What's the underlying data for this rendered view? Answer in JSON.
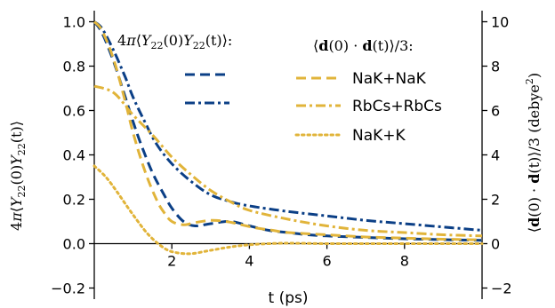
{
  "chart_data": {
    "type": "line",
    "xlabel": "t (ps)",
    "xlim": [
      0,
      10
    ],
    "x_ticks": [
      2,
      4,
      6,
      8
    ],
    "left_axis": {
      "label": "4π⟨Y22(0)Y22(t)⟩",
      "label_parts": {
        "pre": "4",
        "pi": "π",
        "open": "⟨",
        "y1": "Y",
        "s1": "22",
        "mid": "(0)",
        "y2": "Y",
        "s2": "22",
        "end": "(t)⟩"
      },
      "ylim": [
        -0.25,
        1.05
      ],
      "ticks": [
        -0.2,
        0.0,
        0.2,
        0.4,
        0.6,
        0.8,
        1.0
      ],
      "tick_labels": [
        "−0.2",
        "0.0",
        "0.2",
        "0.4",
        "0.6",
        "0.8",
        "1.0"
      ]
    },
    "right_axis": {
      "label": "⟨d(0) · d(t)⟩/3 (debye²)",
      "label_parts": {
        "open": "⟨",
        "d1": "d",
        "mid": "(0) · ",
        "d2": "d",
        "end": "(t)⟩/3 (debye",
        "sup": "2",
        "close": ")"
      },
      "ylim": [
        -2.5,
        10.5
      ],
      "ticks": [
        -2,
        0,
        2,
        4,
        6,
        8,
        10
      ],
      "tick_labels": [
        "−2",
        "0",
        "2",
        "4",
        "6",
        "8",
        "10"
      ]
    },
    "legend_left": {
      "title": "4π⟨Y22(0)Y22(t)⟩:",
      "title_parts": {
        "pre": "4",
        "pi": "π",
        "open": "⟨",
        "y1": "Y",
        "s1": "22",
        "mid": "(0)",
        "y2": "Y",
        "s2": "22",
        "end": "(t)⟩:"
      }
    },
    "legend_right": {
      "title": "⟨d(0) · d(t)⟩/3:",
      "title_parts": {
        "open": "⟨",
        "d1": "d",
        "mid": "(0) · ",
        "d2": "d",
        "end": "(t)⟩/3:"
      }
    },
    "series": [
      {
        "name": "NaK+NaK",
        "axis": "left",
        "color": "#0b3f86",
        "dash": "dashed",
        "x": [
          0,
          0.2,
          0.5,
          0.8,
          1.0,
          1.2,
          1.5,
          1.8,
          2.0,
          2.3,
          2.6,
          3.0,
          3.5,
          4.0,
          4.5,
          5.0,
          5.5,
          6.0,
          7.0,
          8.0,
          9.0,
          10.0
        ],
        "y": [
          1.0,
          0.95,
          0.82,
          0.66,
          0.55,
          0.45,
          0.32,
          0.22,
          0.16,
          0.1,
          0.08,
          0.09,
          0.1,
          0.08,
          0.06,
          0.05,
          0.04,
          0.035,
          0.028,
          0.022,
          0.018,
          0.015
        ]
      },
      {
        "name": "RbCs+RbCs",
        "axis": "left",
        "color": "#0b3f86",
        "dash": "dashdot",
        "x": [
          0,
          0.2,
          0.5,
          0.8,
          1.0,
          1.3,
          1.6,
          2.0,
          2.5,
          3.0,
          3.5,
          4.0,
          5.0,
          6.0,
          7.0,
          8.0,
          9.0,
          10.0
        ],
        "y": [
          1.0,
          0.97,
          0.87,
          0.75,
          0.66,
          0.55,
          0.45,
          0.36,
          0.28,
          0.22,
          0.19,
          0.17,
          0.145,
          0.125,
          0.105,
          0.09,
          0.075,
          0.06
        ]
      },
      {
        "name": "NaK+NaK",
        "axis": "right",
        "color": "#e1b43a",
        "dash": "dashed",
        "x": [
          0,
          0.2,
          0.5,
          0.8,
          1.0,
          1.3,
          1.6,
          1.8,
          2.0,
          2.3,
          2.6,
          3.0,
          3.4,
          3.8,
          4.2,
          4.6,
          5.0,
          6.0,
          7.0,
          8.0,
          9.0,
          10.0
        ],
        "y": [
          10.0,
          9.6,
          8.3,
          6.4,
          5.0,
          3.3,
          2.0,
          1.4,
          1.0,
          0.85,
          0.95,
          1.05,
          1.0,
          0.85,
          0.7,
          0.6,
          0.5,
          0.4,
          0.3,
          0.25,
          0.2,
          0.17
        ]
      },
      {
        "name": "RbCs+RbCs",
        "axis": "right",
        "color": "#e1b43a",
        "dash": "dashdot",
        "x": [
          0,
          0.5,
          1.0,
          1.5,
          2.0,
          2.5,
          3.0,
          3.5,
          4.0,
          5.0,
          6.0,
          7.0,
          8.0,
          9.0,
          10.0
        ],
        "y": [
          7.1,
          6.8,
          5.8,
          4.9,
          3.9,
          3.1,
          2.4,
          1.9,
          1.5,
          1.1,
          0.8,
          0.6,
          0.5,
          0.4,
          0.35
        ]
      },
      {
        "name": "NaK+K",
        "axis": "right",
        "color": "#e1b43a",
        "dash": "dotted",
        "x": [
          0,
          0.3,
          0.6,
          1.0,
          1.4,
          1.8,
          2.1,
          2.5,
          3.0,
          3.5,
          4.0,
          4.5,
          5.0,
          6.0,
          7.0,
          8.0,
          9.0,
          10.0
        ],
        "y": [
          3.5,
          3.0,
          2.3,
          1.3,
          0.4,
          -0.2,
          -0.4,
          -0.45,
          -0.3,
          -0.15,
          -0.05,
          0.0,
          0.02,
          0.0,
          0.0,
          0.0,
          0.0,
          0.0
        ]
      }
    ]
  }
}
